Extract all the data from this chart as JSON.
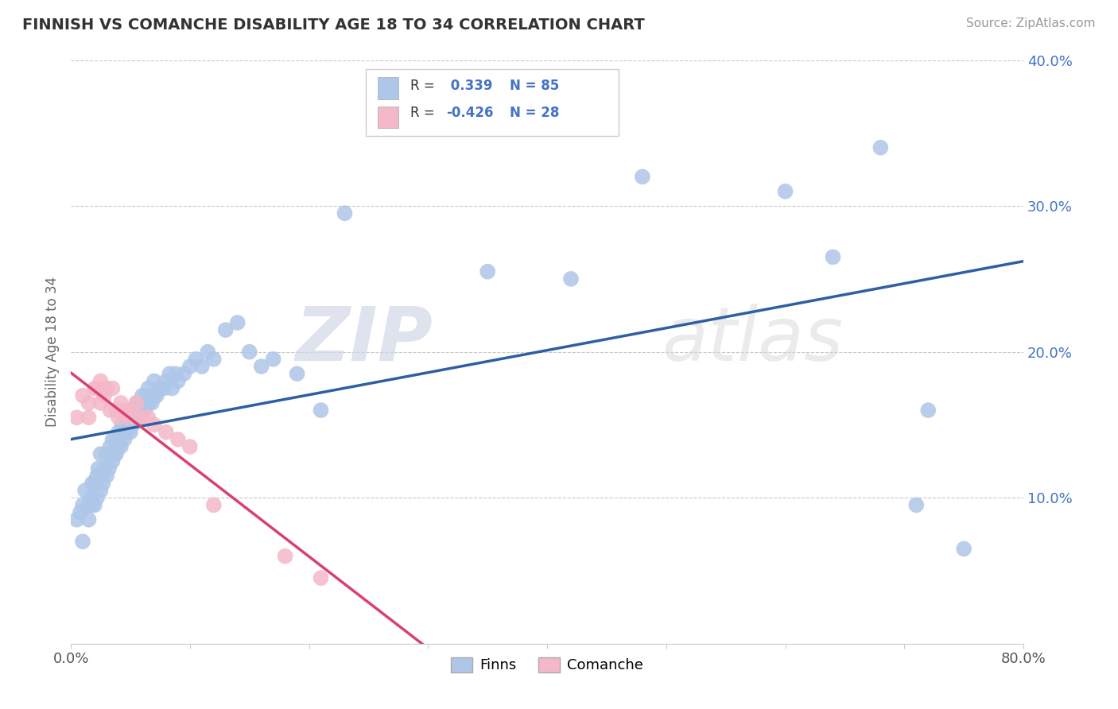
{
  "title": "FINNISH VS COMANCHE DISABILITY AGE 18 TO 34 CORRELATION CHART",
  "source_text": "Source: ZipAtlas.com",
  "ylabel": "Disability Age 18 to 34",
  "xlim": [
    0.0,
    0.8
  ],
  "ylim": [
    0.0,
    0.4
  ],
  "legend_r_finns": "0.339",
  "legend_n_finns": "85",
  "legend_r_comanche": "-0.426",
  "legend_n_comanche": "28",
  "finns_color": "#aec6e8",
  "comanche_color": "#f4b8c8",
  "trendline_finns_color": "#2e5fa3",
  "trendline_comanche_color": "#d94070",
  "background_color": "#ffffff",
  "watermark_zip": "ZIP",
  "watermark_atlas": "atlas",
  "finns_x": [
    0.005,
    0.008,
    0.01,
    0.01,
    0.012,
    0.015,
    0.015,
    0.017,
    0.018,
    0.018,
    0.02,
    0.02,
    0.022,
    0.022,
    0.023,
    0.025,
    0.025,
    0.025,
    0.027,
    0.028,
    0.03,
    0.03,
    0.032,
    0.033,
    0.035,
    0.035,
    0.037,
    0.038,
    0.038,
    0.04,
    0.04,
    0.042,
    0.043,
    0.045,
    0.045,
    0.047,
    0.048,
    0.05,
    0.05,
    0.052,
    0.053,
    0.055,
    0.055,
    0.057,
    0.058,
    0.06,
    0.06,
    0.062,
    0.063,
    0.065,
    0.065,
    0.068,
    0.07,
    0.07,
    0.072,
    0.075,
    0.078,
    0.08,
    0.083,
    0.085,
    0.088,
    0.09,
    0.095,
    0.1,
    0.105,
    0.11,
    0.115,
    0.12,
    0.13,
    0.14,
    0.15,
    0.16,
    0.17,
    0.19,
    0.21,
    0.23,
    0.35,
    0.42,
    0.48,
    0.6,
    0.64,
    0.68,
    0.71,
    0.72,
    0.75
  ],
  "finns_y": [
    0.085,
    0.09,
    0.07,
    0.095,
    0.105,
    0.085,
    0.095,
    0.1,
    0.095,
    0.11,
    0.095,
    0.11,
    0.115,
    0.1,
    0.12,
    0.105,
    0.115,
    0.13,
    0.11,
    0.12,
    0.115,
    0.13,
    0.12,
    0.135,
    0.125,
    0.14,
    0.13,
    0.14,
    0.13,
    0.135,
    0.145,
    0.135,
    0.15,
    0.14,
    0.15,
    0.145,
    0.155,
    0.145,
    0.16,
    0.15,
    0.16,
    0.155,
    0.165,
    0.155,
    0.165,
    0.16,
    0.17,
    0.16,
    0.17,
    0.165,
    0.175,
    0.165,
    0.17,
    0.18,
    0.17,
    0.175,
    0.175,
    0.18,
    0.185,
    0.175,
    0.185,
    0.18,
    0.185,
    0.19,
    0.195,
    0.19,
    0.2,
    0.195,
    0.215,
    0.22,
    0.2,
    0.19,
    0.195,
    0.185,
    0.16,
    0.295,
    0.255,
    0.25,
    0.32,
    0.31,
    0.265,
    0.34,
    0.095,
    0.16,
    0.065
  ],
  "comanche_x": [
    0.005,
    0.01,
    0.015,
    0.015,
    0.02,
    0.022,
    0.025,
    0.025,
    0.028,
    0.03,
    0.033,
    0.035,
    0.038,
    0.04,
    0.042,
    0.045,
    0.048,
    0.05,
    0.055,
    0.06,
    0.065,
    0.07,
    0.08,
    0.09,
    0.1,
    0.12,
    0.18,
    0.21
  ],
  "comanche_y": [
    0.155,
    0.17,
    0.155,
    0.165,
    0.175,
    0.175,
    0.18,
    0.165,
    0.17,
    0.175,
    0.16,
    0.175,
    0.16,
    0.155,
    0.165,
    0.16,
    0.155,
    0.16,
    0.165,
    0.155,
    0.155,
    0.15,
    0.145,
    0.14,
    0.135,
    0.095,
    0.06,
    0.045
  ]
}
